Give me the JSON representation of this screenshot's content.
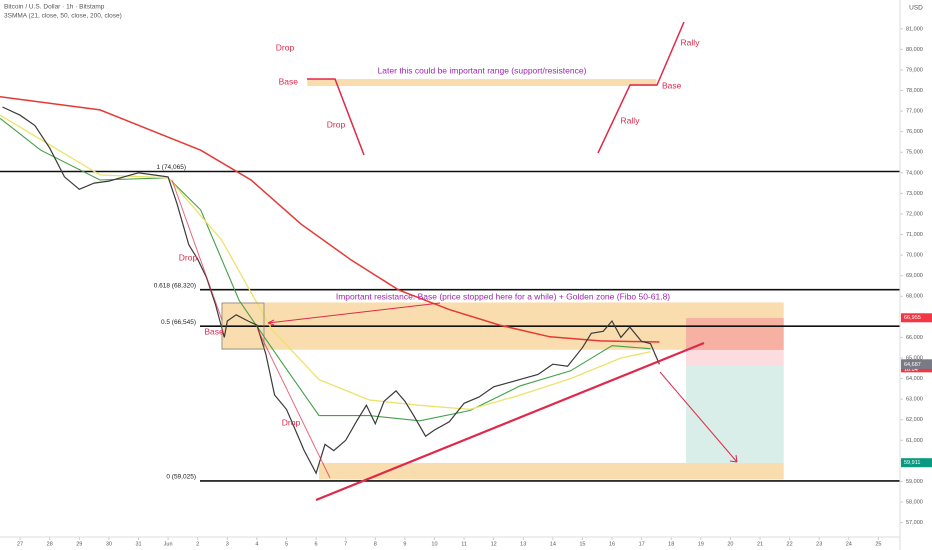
{
  "header": {
    "title": "Bitcoin / U.S. Dollar · 1h · Bitstamp",
    "indicator": "3SMMA (21, close, 50, close, 200, close)",
    "currency": "USD"
  },
  "chart_data": {
    "type": "line",
    "xlim": [
      -0.68,
      29.73
    ],
    "ylim": [
      56300,
      82400
    ],
    "xticks": [
      {
        "value": 0,
        "label": "27"
      },
      {
        "value": 1,
        "label": "28"
      },
      {
        "value": 2,
        "label": "29"
      },
      {
        "value": 3,
        "label": "30"
      },
      {
        "value": 4,
        "label": "31"
      },
      {
        "value": 5,
        "label": "Jun"
      },
      {
        "value": 6,
        "label": "2"
      },
      {
        "value": 7,
        "label": "3"
      },
      {
        "value": 8,
        "label": "4"
      },
      {
        "value": 9,
        "label": "5"
      },
      {
        "value": 10,
        "label": "6"
      },
      {
        "value": 11,
        "label": "7"
      },
      {
        "value": 12,
        "label": "8"
      },
      {
        "value": 13,
        "label": "9"
      },
      {
        "value": 14,
        "label": "10"
      },
      {
        "value": 15,
        "label": "11"
      },
      {
        "value": 16,
        "label": "12"
      },
      {
        "value": 17,
        "label": "13"
      },
      {
        "value": 18,
        "label": "14"
      },
      {
        "value": 19,
        "label": "15"
      },
      {
        "value": 20,
        "label": "16"
      },
      {
        "value": 21,
        "label": "17"
      },
      {
        "value": 22,
        "label": "18"
      },
      {
        "value": 23,
        "label": "19"
      },
      {
        "value": 24,
        "label": "20"
      },
      {
        "value": 25,
        "label": "21"
      },
      {
        "value": 26,
        "label": "22"
      },
      {
        "value": 27,
        "label": "23"
      },
      {
        "value": 28,
        "label": "24"
      },
      {
        "value": 29,
        "label": "25"
      }
    ],
    "yticks": [
      {
        "value": 57000,
        "label": "57,000"
      },
      {
        "value": 58000,
        "label": "58,000"
      },
      {
        "value": 59000,
        "label": "59,000"
      },
      {
        "value": 60000,
        "label": "60,000"
      },
      {
        "value": 61000,
        "label": "61,000"
      },
      {
        "value": 62000,
        "label": "62,000"
      },
      {
        "value": 63000,
        "label": "63,000"
      },
      {
        "value": 64000,
        "label": "64,000"
      },
      {
        "value": 65000,
        "label": "65,000"
      },
      {
        "value": 66000,
        "label": "66,000"
      },
      {
        "value": 67000,
        "label": "67,000"
      },
      {
        "value": 68000,
        "label": "68,000"
      },
      {
        "value": 69000,
        "label": "69,000"
      },
      {
        "value": 70000,
        "label": "70,000"
      },
      {
        "value": 71000,
        "label": "71,000"
      },
      {
        "value": 72000,
        "label": "72,000"
      },
      {
        "value": 73000,
        "label": "73,000"
      },
      {
        "value": 74000,
        "label": "74,000"
      },
      {
        "value": 75000,
        "label": "75,000"
      },
      {
        "value": 76000,
        "label": "76,000"
      },
      {
        "value": 77000,
        "label": "77,000"
      },
      {
        "value": 78000,
        "label": "78,000"
      },
      {
        "value": 79000,
        "label": "79,000"
      },
      {
        "value": 80000,
        "label": "80,000"
      },
      {
        "value": 81000,
        "label": "81,000"
      }
    ],
    "series": [
      {
        "color": "#3a3a3a",
        "width": 1.2,
        "x": [
          -0.6,
          0,
          0.5,
          1,
          1.5,
          2,
          2.5,
          3,
          3.5,
          4,
          4.5,
          5,
          5.3,
          5.7,
          6,
          6.3,
          6.6,
          6.9,
          7,
          7.3,
          7.7,
          8,
          8.3,
          8.6,
          9,
          9.3,
          9.6,
          10,
          10.3,
          10.6,
          11,
          11.4,
          11.7,
          12,
          12.3,
          12.7,
          13,
          13.3,
          13.7,
          14,
          14.5,
          15,
          15.5,
          16,
          16.5,
          17,
          17.5,
          18,
          18.5,
          19,
          19.3,
          19.7,
          20,
          20.3,
          20.6,
          21,
          21.3,
          21.6
        ],
        "values": [
          77200,
          76800,
          76300,
          75200,
          73800,
          73200,
          73500,
          73600,
          73800,
          74000,
          73900,
          73800,
          72500,
          70500,
          69800,
          68900,
          67600,
          66000,
          66800,
          67100,
          66800,
          66600,
          65200,
          63200,
          62500,
          61500,
          60500,
          59400,
          60800,
          60500,
          61000,
          62000,
          62700,
          61800,
          62900,
          63400,
          62900,
          62200,
          61200,
          61500,
          61900,
          62800,
          63100,
          63600,
          63800,
          64000,
          64200,
          64700,
          64600,
          65500,
          66200,
          66300,
          66800,
          66000,
          66500,
          65800,
          65700,
          64700
        ]
      },
      {
        "color": "#e53935",
        "width": 1.5,
        "x": [
          -0.68,
          2.7,
          6.1,
          7.8,
          9.5,
          11.2,
          12.8,
          14.5,
          16.2,
          17.9,
          19.6,
          21.6
        ],
        "values": [
          77700,
          77060,
          75100,
          73650,
          71500,
          69750,
          68300,
          67350,
          66600,
          66030,
          65830,
          65780
        ]
      },
      {
        "color": "#ede26a",
        "width": 1.3,
        "x": [
          -0.68,
          1,
          2.7,
          5,
          6.8,
          8.5,
          10.1,
          11.8,
          13.5,
          15.2,
          16.9,
          18.6,
          20.3,
          21.3
        ],
        "values": [
          76800,
          75360,
          73900,
          73760,
          70750,
          66400,
          63950,
          62960,
          62700,
          62500,
          63200,
          64000,
          65000,
          65300
        ]
      },
      {
        "color": "#43a047",
        "width": 1.1,
        "x": [
          -0.68,
          0.7,
          2.7,
          5,
          6.1,
          7.4,
          8.8,
          10.1,
          11.8,
          13.5,
          15.2,
          16.9,
          18.6,
          20,
          21.3
        ],
        "values": [
          76650,
          75100,
          73650,
          73760,
          72200,
          67800,
          64870,
          62200,
          62200,
          61950,
          62450,
          63650,
          64380,
          65600,
          65450
        ]
      }
    ],
    "levels": [
      {
        "value": 74065,
        "label": "1 (74,065)"
      },
      {
        "value": 68320,
        "label": "0.618 (68,320)"
      },
      {
        "value": 66545,
        "label": "0.5 (66,545)"
      },
      {
        "value": 59025,
        "label": "0 (59,025)"
      }
    ],
    "zones": [
      {
        "from": 6.8,
        "to": 25.8,
        "low": 65400,
        "high": 67700,
        "color": "#f9d49a"
      },
      {
        "from": 10.1,
        "to": 25.8,
        "low": 59100,
        "high": 59900,
        "color": "#f9d49a"
      },
      {
        "from": 9.7,
        "to": 21.5,
        "low": 78220,
        "high": 78560,
        "color": "#f9d49a"
      },
      {
        "from": 22.5,
        "to": 25.8,
        "low": 65390,
        "high": 66945,
        "color": "#f5a6a0"
      },
      {
        "from": 22.5,
        "to": 25.8,
        "low": 64610,
        "high": 65390,
        "color": "#fbd3d6"
      },
      {
        "from": 22.5,
        "to": 25.8,
        "low": 59900,
        "high": 64610,
        "color": "#cfe9e3"
      }
    ],
    "annotations": [
      "Drop",
      "Base",
      "Later this could be important range (support/resistence)",
      "Drop",
      "Rally",
      "Base",
      "Rally",
      "Drop",
      "Base",
      "Important resistance: Base (price stopped here for a while) + Golden zone (Fibo 50-61.8)",
      "Drop"
    ],
    "price_tags": [
      {
        "value": 66955,
        "label": "66,955",
        "color": "#f23645"
      },
      {
        "value": 64716,
        "label": "64,716",
        "color": "#f23645"
      },
      {
        "value": 64687,
        "label": "64,687",
        "color": "#787b86"
      },
      {
        "value": 59911,
        "label": "59,911",
        "color": "#089981"
      }
    ],
    "countdown": "18:04"
  }
}
